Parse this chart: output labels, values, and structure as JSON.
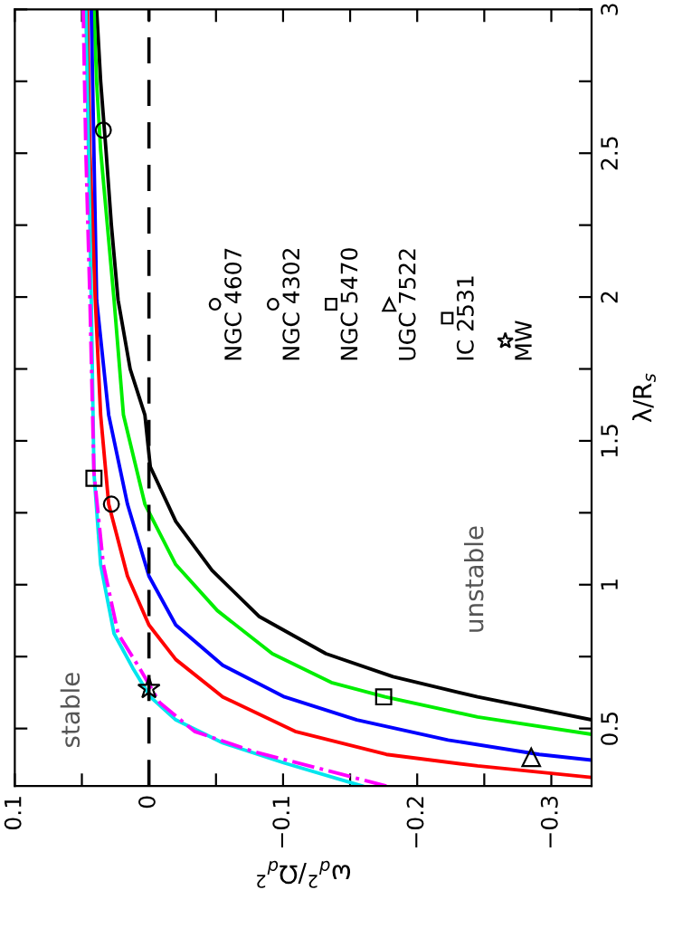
{
  "chart_data": {
    "type": "line",
    "xlabel": "ω$_{d}$$^{2}$/Ω$_{d}$$^{2}$",
    "ylabel": "λ/R$_{s}$",
    "xlim": [
      0.1,
      -0.33
    ],
    "ylim": [
      0.3,
      3
    ],
    "xticks": [
      0.1,
      {
        "value": 0.05,
        "label": null
      },
      0,
      {
        "value": -0.05,
        "label": null
      },
      {
        "value": -0.1,
        "label": "−0.1"
      },
      {
        "value": -0.15,
        "label": null
      },
      {
        "value": -0.2,
        "label": "−0.2"
      },
      {
        "value": -0.25,
        "label": null
      },
      {
        "value": -0.3,
        "label": "−0.3"
      }
    ],
    "yticks": [
      0.5,
      {
        "value": 0.75,
        "label": null
      },
      1,
      {
        "value": 1.25,
        "label": null
      },
      1.5,
      {
        "value": 1.75,
        "label": null
      },
      2,
      {
        "value": 2.25,
        "label": null
      },
      2.5,
      {
        "value": 2.75,
        "label": null
      },
      3
    ],
    "grid": false,
    "legend": "top right",
    "ref_lines": [
      {
        "axis": "x",
        "value": 0,
        "label": null,
        "color": "#000000",
        "line_style": "dashed"
      }
    ],
    "annotations": [
      "stable",
      "unstable"
    ],
    "series": [
      {
        "color": "#000000",
        "line_style": "solid",
        "x": [
          -0.33,
          -0.245,
          -0.182,
          -0.132,
          -0.082,
          -0.047,
          -0.02,
          -0.001,
          0.003,
          0.014,
          0.023,
          0.028,
          0.032,
          0.036,
          0.039
        ],
        "values": [
          0.53,
          0.61,
          0.68,
          0.76,
          0.89,
          1.05,
          1.22,
          1.41,
          1.59,
          1.75,
          1.99,
          2.25,
          2.51,
          2.75,
          3.0
        ]
      },
      {
        "color": "#00ee00",
        "line_style": "solid",
        "x": [
          -0.33,
          -0.245,
          -0.176,
          -0.136,
          -0.092,
          -0.051,
          -0.02,
          0.003,
          0.019,
          0.026,
          0.031,
          0.036,
          0.039,
          0.041
        ],
        "values": [
          0.48,
          0.54,
          0.61,
          0.66,
          0.76,
          0.91,
          1.07,
          1.28,
          1.59,
          1.99,
          2.25,
          2.51,
          2.75,
          3.0
        ]
      },
      {
        "color": "#0000ff",
        "line_style": "solid",
        "x": [
          -0.33,
          -0.291,
          -0.223,
          -0.155,
          -0.101,
          -0.055,
          -0.02,
          0.0,
          0.016,
          0.03,
          0.039,
          0.041,
          0.043
        ],
        "values": [
          0.39,
          0.41,
          0.46,
          0.53,
          0.61,
          0.72,
          0.86,
          1.03,
          1.28,
          1.59,
          1.99,
          2.5,
          3.0
        ]
      },
      {
        "color": "#ff0000",
        "line_style": "solid",
        "x": [
          -0.33,
          -0.245,
          -0.177,
          -0.109,
          -0.055,
          -0.02,
          0.0,
          0.016,
          0.03,
          0.036,
          0.04,
          0.044,
          0.046
        ],
        "values": [
          0.33,
          0.37,
          0.41,
          0.49,
          0.61,
          0.74,
          0.86,
          1.03,
          1.28,
          1.59,
          1.99,
          2.5,
          3.0
        ]
      },
      {
        "color": "#00e5ee",
        "line_style": "solid",
        "x": [
          -0.159,
          -0.101,
          -0.055,
          -0.02,
          -0.001,
          0.012,
          0.026,
          0.036,
          0.041,
          0.043,
          0.045,
          0.047
        ],
        "values": [
          0.3,
          0.38,
          0.45,
          0.53,
          0.61,
          0.71,
          0.83,
          1.07,
          1.39,
          1.99,
          2.5,
          3.0
        ]
      },
      {
        "color": "#ff00ff",
        "line_style": "dashdot",
        "x": [
          -0.177,
          -0.128,
          -0.078,
          -0.034,
          -0.008,
          0.007,
          0.023,
          0.034,
          0.041,
          0.044,
          0.047,
          0.049
        ],
        "values": [
          0.3,
          0.36,
          0.42,
          0.49,
          0.59,
          0.71,
          0.83,
          1.07,
          1.39,
          1.99,
          2.5,
          3.0
        ]
      },
      {
        "type": "scatter",
        "name": "NGC 4607",
        "marker": "circle",
        "color": "#000000",
        "x": [
          0.034
        ],
        "values": [
          2.58
        ]
      },
      {
        "type": "scatter",
        "name": "NGC 4302",
        "marker": "circle",
        "color": "#000000",
        "x": [
          0.028
        ],
        "values": [
          1.28
        ]
      },
      {
        "type": "scatter",
        "name": "NGC 5470",
        "marker": "square",
        "color": "#000000",
        "x": [
          -0.175
        ],
        "values": [
          0.61
        ]
      },
      {
        "type": "scatter",
        "name": "UGC 7522",
        "marker": "triangle",
        "color": "#000000",
        "x": [
          -0.285
        ],
        "values": [
          0.4
        ]
      },
      {
        "type": "scatter",
        "name": "IC 2531",
        "marker": "square",
        "color": "#000000",
        "x": [
          0.041
        ],
        "values": [
          1.37
        ]
      },
      {
        "type": "scatter",
        "name": "MW",
        "marker": "star",
        "color": "#000000",
        "x": [
          0.0
        ],
        "values": [
          0.64
        ]
      }
    ]
  }
}
